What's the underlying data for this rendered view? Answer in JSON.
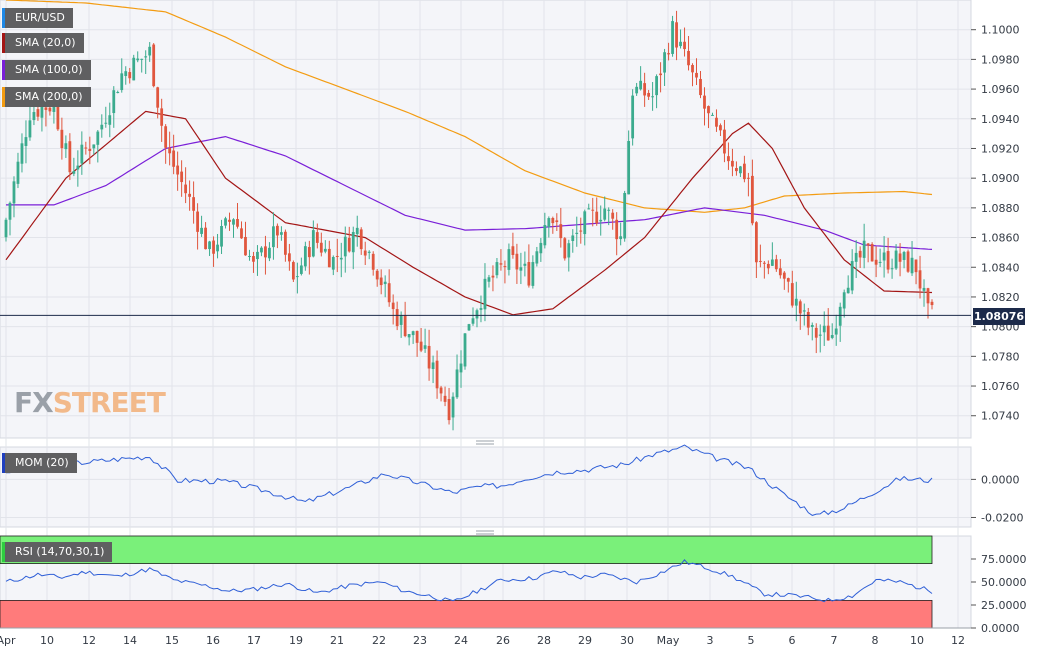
{
  "symbol": "EUR/USD",
  "indicators": {
    "sma20": "SMA (20,0)",
    "sma100": "SMA (100,0)",
    "sma200": "SMA (200,0)",
    "mom": "MOM (20)",
    "rsi": "RSI (14,70,30,1)"
  },
  "colors": {
    "up": "#3bab8e",
    "down": "#e0563e",
    "sma20": "#a31515",
    "sma100": "#7a1fd8",
    "sma200": "#f39c12",
    "mom_line": "#2f5fd7",
    "rsi_line": "#2f5fd7",
    "rsi_overbought_band": "#7af07a",
    "rsi_oversold_band": "#ff7b7b",
    "price_tag": "#1c2a4a"
  },
  "current_price": "1.08076",
  "logo": {
    "part1": "FX",
    "part2": "STREET"
  },
  "x_axis_dates": [
    "Apr",
    "10",
    "12",
    "14",
    "15",
    "16",
    "17",
    "19",
    "21",
    "22",
    "23",
    "24",
    "26",
    "28",
    "29",
    "30",
    "May",
    "3",
    "5",
    "6",
    "7",
    "8",
    "10",
    "12"
  ],
  "chart_data": [
    {
      "type": "candlestick",
      "title": "EUR/USD",
      "ylim": [
        1.0725,
        1.102
      ],
      "y_ticks": [
        "1.1000",
        "1.0980",
        "1.0960",
        "1.0940",
        "1.0920",
        "1.0900",
        "1.0880",
        "1.0860",
        "1.0840",
        "1.0820",
        "1.0800",
        "1.0780",
        "1.0760",
        "1.0740"
      ],
      "anchors": [
        {
          "t": 0,
          "v": 1.086
        },
        {
          "t": 7,
          "v": 1.0945
        },
        {
          "t": 13,
          "v": 1.095
        },
        {
          "t": 17,
          "v": 1.0905
        },
        {
          "t": 24,
          "v": 1.093
        },
        {
          "t": 30,
          "v": 1.097
        },
        {
          "t": 37,
          "v": 1.0985
        },
        {
          "t": 41,
          "v": 1.092
        },
        {
          "t": 47,
          "v": 1.0885
        },
        {
          "t": 52,
          "v": 1.085
        },
        {
          "t": 58,
          "v": 1.0875
        },
        {
          "t": 63,
          "v": 1.084
        },
        {
          "t": 69,
          "v": 1.0865
        },
        {
          "t": 73,
          "v": 1.083
        },
        {
          "t": 78,
          "v": 1.086
        },
        {
          "t": 83,
          "v": 1.0845
        },
        {
          "t": 89,
          "v": 1.0865
        },
        {
          "t": 93,
          "v": 1.0845
        },
        {
          "t": 98,
          "v": 1.081
        },
        {
          "t": 104,
          "v": 1.079
        },
        {
          "t": 108,
          "v": 1.077
        },
        {
          "t": 112,
          "v": 1.0745
        },
        {
          "t": 117,
          "v": 1.0805
        },
        {
          "t": 122,
          "v": 1.083
        },
        {
          "t": 127,
          "v": 1.0845
        },
        {
          "t": 132,
          "v": 1.0835
        },
        {
          "t": 137,
          "v": 1.088
        },
        {
          "t": 141,
          "v": 1.085
        },
        {
          "t": 146,
          "v": 1.087
        },
        {
          "t": 151,
          "v": 1.088
        },
        {
          "t": 155,
          "v": 1.086
        },
        {
          "t": 158,
          "v": 1.096
        },
        {
          "t": 163,
          "v": 1.0955
        },
        {
          "t": 168,
          "v": 1.1
        },
        {
          "t": 172,
          "v": 1.0975
        },
        {
          "t": 177,
          "v": 1.094
        },
        {
          "t": 182,
          "v": 1.0915
        },
        {
          "t": 187,
          "v": 1.09
        },
        {
          "t": 189,
          "v": 1.084
        },
        {
          "t": 193,
          "v": 1.0845
        },
        {
          "t": 198,
          "v": 1.082
        },
        {
          "t": 203,
          "v": 1.0795
        },
        {
          "t": 208,
          "v": 1.0795
        },
        {
          "t": 211,
          "v": 1.083
        },
        {
          "t": 216,
          "v": 1.085
        },
        {
          "t": 221,
          "v": 1.0845
        },
        {
          "t": 225,
          "v": 1.0845
        },
        {
          "t": 229,
          "v": 1.084
        },
        {
          "t": 232,
          "v": 1.0808
        }
      ],
      "sma20": [
        {
          "t": 0,
          "v": 1.0845
        },
        {
          "t": 15,
          "v": 1.09
        },
        {
          "t": 35,
          "v": 1.0945
        },
        {
          "t": 45,
          "v": 1.094
        },
        {
          "t": 55,
          "v": 1.09
        },
        {
          "t": 70,
          "v": 1.087
        },
        {
          "t": 90,
          "v": 1.086
        },
        {
          "t": 102,
          "v": 1.084
        },
        {
          "t": 115,
          "v": 1.082
        },
        {
          "t": 127,
          "v": 1.0808
        },
        {
          "t": 137,
          "v": 1.0812
        },
        {
          "t": 150,
          "v": 1.0838
        },
        {
          "t": 160,
          "v": 1.086
        },
        {
          "t": 172,
          "v": 1.09
        },
        {
          "t": 182,
          "v": 1.093
        },
        {
          "t": 186,
          "v": 1.0937
        },
        {
          "t": 192,
          "v": 1.092
        },
        {
          "t": 200,
          "v": 1.088
        },
        {
          "t": 210,
          "v": 1.0845
        },
        {
          "t": 220,
          "v": 1.0824
        },
        {
          "t": 232,
          "v": 1.0823
        }
      ],
      "sma100": [
        {
          "t": 0,
          "v": 1.0882
        },
        {
          "t": 12,
          "v": 1.0882
        },
        {
          "t": 25,
          "v": 1.0895
        },
        {
          "t": 40,
          "v": 1.092
        },
        {
          "t": 55,
          "v": 1.0928
        },
        {
          "t": 70,
          "v": 1.0915
        },
        {
          "t": 85,
          "v": 1.0895
        },
        {
          "t": 100,
          "v": 1.0875
        },
        {
          "t": 115,
          "v": 1.0865
        },
        {
          "t": 130,
          "v": 1.0866
        },
        {
          "t": 145,
          "v": 1.0869
        },
        {
          "t": 160,
          "v": 1.0872
        },
        {
          "t": 175,
          "v": 1.088
        },
        {
          "t": 190,
          "v": 1.0875
        },
        {
          "t": 205,
          "v": 1.0865
        },
        {
          "t": 215,
          "v": 1.0855
        },
        {
          "t": 232,
          "v": 1.0852
        }
      ],
      "sma200": [
        {
          "t": 0,
          "v": 1.102
        },
        {
          "t": 20,
          "v": 1.1018
        },
        {
          "t": 40,
          "v": 1.1012
        },
        {
          "t": 55,
          "v": 1.0995
        },
        {
          "t": 70,
          "v": 1.0975
        },
        {
          "t": 85,
          "v": 1.096
        },
        {
          "t": 100,
          "v": 1.0945
        },
        {
          "t": 115,
          "v": 1.0928
        },
        {
          "t": 130,
          "v": 1.0905
        },
        {
          "t": 145,
          "v": 1.089
        },
        {
          "t": 160,
          "v": 1.088
        },
        {
          "t": 175,
          "v": 1.0877
        },
        {
          "t": 185,
          "v": 1.088
        },
        {
          "t": 195,
          "v": 1.0888
        },
        {
          "t": 210,
          "v": 1.089
        },
        {
          "t": 225,
          "v": 1.0891
        },
        {
          "t": 232,
          "v": 1.0889
        }
      ]
    },
    {
      "type": "line",
      "title": "MOM (20)",
      "ylim": [
        -0.025,
        0.017
      ],
      "y_ticks": [
        "0.0000",
        "-0.0200"
      ],
      "values": [
        {
          "t": 0,
          "v": 0.004
        },
        {
          "t": 10,
          "v": 0.007
        },
        {
          "t": 20,
          "v": 0.009
        },
        {
          "t": 30,
          "v": 0.011
        },
        {
          "t": 36,
          "v": 0.012
        },
        {
          "t": 43,
          "v": -0.0005
        },
        {
          "t": 55,
          "v": -0.001
        },
        {
          "t": 65,
          "v": -0.006
        },
        {
          "t": 75,
          "v": -0.012
        },
        {
          "t": 85,
          "v": -0.005
        },
        {
          "t": 95,
          "v": 0.003
        },
        {
          "t": 102,
          "v": -0.001
        },
        {
          "t": 112,
          "v": -0.007
        },
        {
          "t": 118,
          "v": -0.004
        },
        {
          "t": 125,
          "v": -0.003
        },
        {
          "t": 130,
          "v": 0.0005
        },
        {
          "t": 138,
          "v": 0.004
        },
        {
          "t": 145,
          "v": 0.005
        },
        {
          "t": 155,
          "v": 0.008
        },
        {
          "t": 162,
          "v": 0.013
        },
        {
          "t": 170,
          "v": 0.017
        },
        {
          "t": 178,
          "v": 0.011
        },
        {
          "t": 186,
          "v": 0.006
        },
        {
          "t": 195,
          "v": -0.008
        },
        {
          "t": 203,
          "v": -0.019
        },
        {
          "t": 210,
          "v": -0.015
        },
        {
          "t": 218,
          "v": -0.006
        },
        {
          "t": 224,
          "v": 0.0005
        },
        {
          "t": 232,
          "v": -0.0005
        }
      ]
    },
    {
      "type": "line",
      "title": "RSI (14,70,30,1)",
      "ylim": [
        0,
        100
      ],
      "y_ticks": [
        "75.0000",
        "50.0000",
        "25.0000",
        "0.0000"
      ],
      "overbought": 70,
      "oversold": 30,
      "values": [
        {
          "t": 0,
          "v": 50
        },
        {
          "t": 8,
          "v": 58
        },
        {
          "t": 14,
          "v": 55
        },
        {
          "t": 20,
          "v": 61
        },
        {
          "t": 28,
          "v": 56
        },
        {
          "t": 36,
          "v": 64
        },
        {
          "t": 42,
          "v": 52
        },
        {
          "t": 50,
          "v": 46
        },
        {
          "t": 56,
          "v": 40
        },
        {
          "t": 62,
          "v": 42
        },
        {
          "t": 70,
          "v": 48
        },
        {
          "t": 78,
          "v": 38
        },
        {
          "t": 86,
          "v": 46
        },
        {
          "t": 94,
          "v": 50
        },
        {
          "t": 100,
          "v": 40
        },
        {
          "t": 106,
          "v": 35
        },
        {
          "t": 112,
          "v": 28
        },
        {
          "t": 118,
          "v": 40
        },
        {
          "t": 124,
          "v": 52
        },
        {
          "t": 132,
          "v": 54
        },
        {
          "t": 138,
          "v": 62
        },
        {
          "t": 144,
          "v": 55
        },
        {
          "t": 150,
          "v": 58
        },
        {
          "t": 158,
          "v": 50
        },
        {
          "t": 164,
          "v": 60
        },
        {
          "t": 170,
          "v": 72
        },
        {
          "t": 176,
          "v": 65
        },
        {
          "t": 182,
          "v": 56
        },
        {
          "t": 190,
          "v": 37
        },
        {
          "t": 198,
          "v": 35
        },
        {
          "t": 206,
          "v": 30
        },
        {
          "t": 212,
          "v": 35
        },
        {
          "t": 218,
          "v": 52
        },
        {
          "t": 224,
          "v": 50
        },
        {
          "t": 232,
          "v": 40
        }
      ]
    }
  ]
}
